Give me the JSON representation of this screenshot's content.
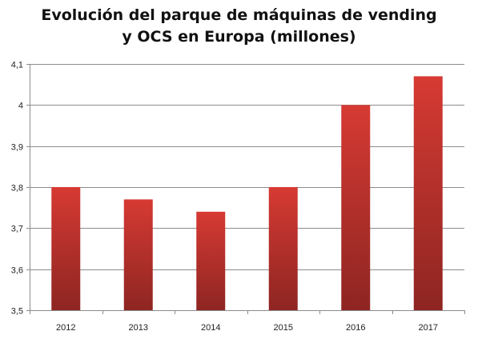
{
  "chart_data": {
    "type": "bar",
    "title_lines": [
      "Evolución del parque de máquinas de vending",
      "y OCS en Europa (millones)"
    ],
    "categories": [
      "2012",
      "2013",
      "2014",
      "2015",
      "2016",
      "2017"
    ],
    "values": [
      3.8,
      3.77,
      3.74,
      3.8,
      4.0,
      4.07
    ],
    "y_ticks": [
      "3,5",
      "3,6",
      "3,7",
      "3,8",
      "3,9",
      "4",
      "4,1"
    ],
    "ylim": [
      3.5,
      4.1
    ],
    "grid": true,
    "legend": "none",
    "colors": {
      "bar_top": "#d63a33",
      "bar_bottom": "#8e2522",
      "grid": "#8c8c8c",
      "axis": "#8c8c8c"
    }
  }
}
